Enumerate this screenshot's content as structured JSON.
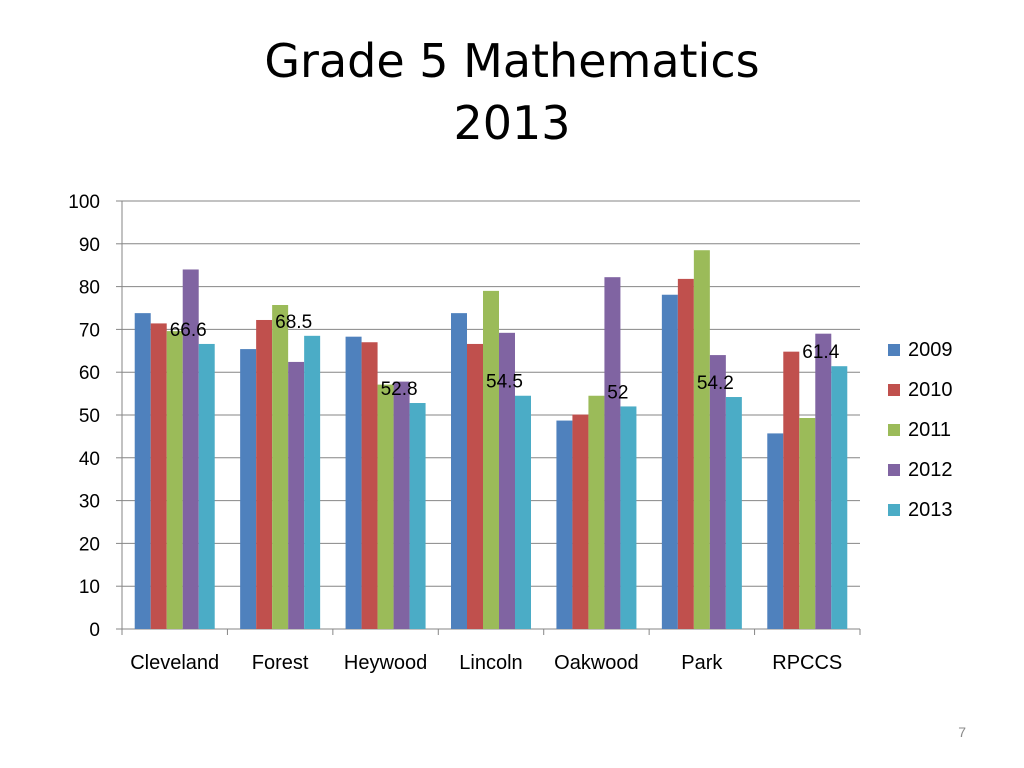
{
  "slide": {
    "title_line1": "Grade 5 Mathematics",
    "title_line2": "2013",
    "page_number": "7"
  },
  "chart_data": {
    "type": "bar",
    "categories": [
      "Cleveland",
      "Forest",
      "Heywood",
      "Lincoln",
      "Oakwood",
      "Park",
      "RPCCS"
    ],
    "series": [
      {
        "name": "2009",
        "color": "#4F81BD",
        "values": [
          73.8,
          65.4,
          68.3,
          73.8,
          48.7,
          78.1,
          45.7
        ]
      },
      {
        "name": "2010",
        "color": "#C0504D",
        "values": [
          71.4,
          72.2,
          67.0,
          66.6,
          50.1,
          81.8,
          64.8
        ]
      },
      {
        "name": "2011",
        "color": "#9BBB59",
        "values": [
          69.6,
          75.7,
          57.1,
          79.0,
          54.5,
          88.5,
          49.3
        ]
      },
      {
        "name": "2012",
        "color": "#8064A2",
        "values": [
          84.0,
          62.4,
          57.8,
          69.2,
          82.2,
          64.0,
          69.0
        ]
      },
      {
        "name": "2013",
        "color": "#4BACC6",
        "values": [
          66.6,
          68.5,
          52.8,
          54.5,
          52.0,
          54.2,
          61.4
        ]
      }
    ],
    "data_labels": {
      "series": "2013",
      "values": [
        "66.6",
        "68.5",
        "52.8",
        "54.5",
        "52",
        "54.2",
        "61.4"
      ]
    },
    "yticks": [
      "0",
      "10",
      "20",
      "30",
      "40",
      "50",
      "60",
      "70",
      "80",
      "90",
      "100"
    ],
    "ylim": [
      0,
      100
    ],
    "grid": true,
    "legend_position": "right"
  }
}
